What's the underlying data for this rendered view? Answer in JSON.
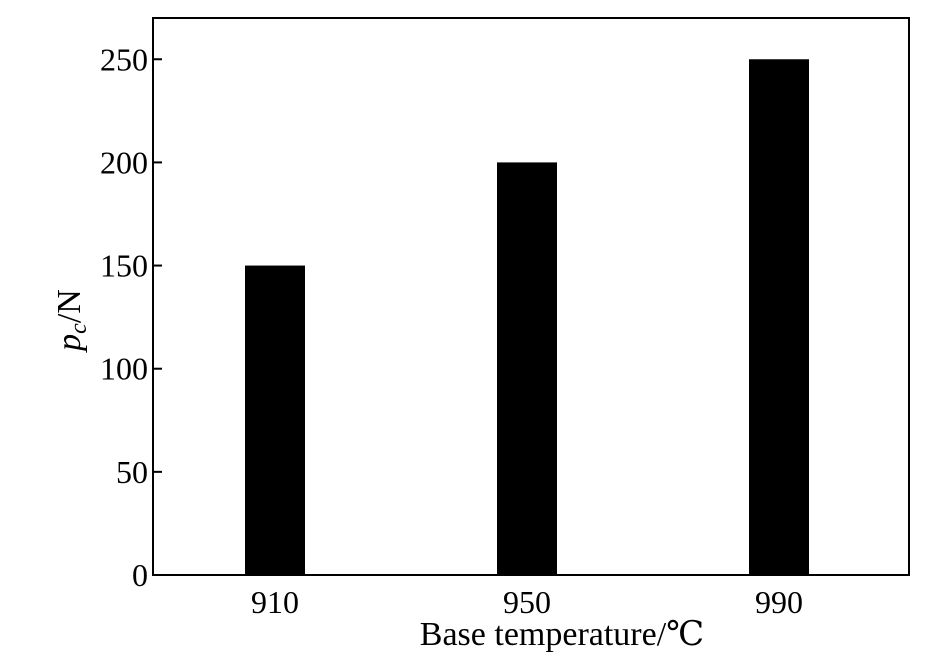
{
  "chart_data": {
    "type": "bar",
    "categories": [
      "910",
      "950",
      "990"
    ],
    "values": [
      150,
      200,
      250
    ],
    "title": "",
    "xlabel": "Base temperature/℃",
    "ylabel_main": "p",
    "ylabel_sub": "c",
    "ylabel_suffix": "/N",
    "ylim": [
      0,
      270
    ],
    "yticks": [
      0,
      50,
      100,
      150,
      200,
      250
    ],
    "grid": false,
    "bar_color": "#000000"
  }
}
